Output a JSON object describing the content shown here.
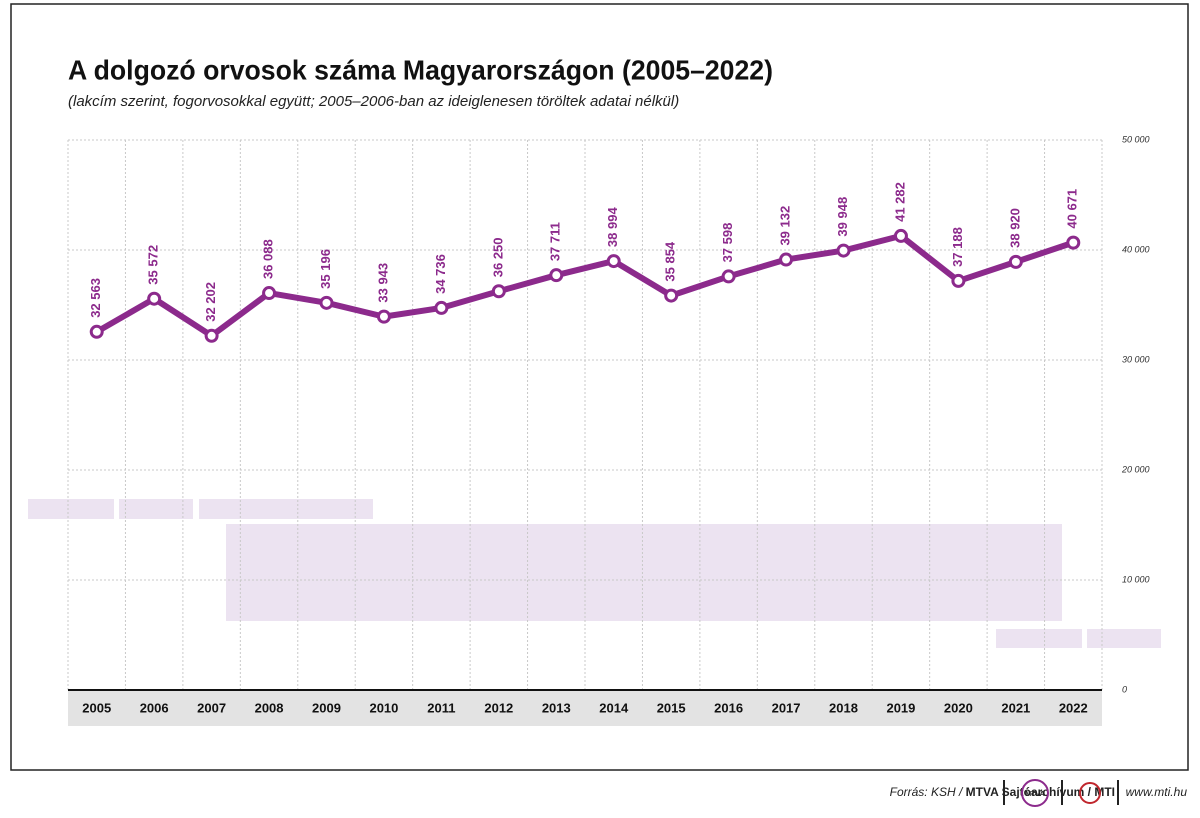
{
  "chart_data": {
    "type": "line",
    "title": "A dolgozó orvosok száma Magyarországon (2005–2022)",
    "subtitle": "(lakcím szerint, fogorvosokkal együtt; 2005–2006-ban az ideiglenesen töröltek adatai nélkül)",
    "categories": [
      "2005",
      "2006",
      "2007",
      "2008",
      "2009",
      "2010",
      "2011",
      "2012",
      "2013",
      "2014",
      "2015",
      "2016",
      "2017",
      "2018",
      "2019",
      "2020",
      "2021",
      "2022"
    ],
    "series": [
      {
        "color": "#8c2a8c",
        "values": [
          32563,
          35572,
          32202,
          36088,
          35196,
          33943,
          34736,
          36250,
          37711,
          38994,
          35854,
          37598,
          39132,
          39948,
          41282,
          37188,
          38920,
          40671
        ],
        "value_labels": [
          "32 563",
          "35 572",
          "32 202",
          "36 088",
          "35 196",
          "33 943",
          "34 736",
          "36 250",
          "37 711",
          "38 994",
          "35 854",
          "37 598",
          "39 132",
          "39 948",
          "41 282",
          "37 188",
          "38 920",
          "40 671"
        ]
      }
    ],
    "ylim": [
      0,
      50000
    ],
    "yticks": [
      0,
      {
        "value": 10000,
        "label": "10 000"
      },
      {
        "value": 20000,
        "label": "20 000"
      },
      {
        "value": 30000,
        "label": "30 000"
      },
      {
        "value": 40000,
        "label": "40 000"
      },
      {
        "value": 50000,
        "label": "50 000"
      }
    ],
    "grid": true
  },
  "footer": {
    "source_prefix": "Forrás: KSH /",
    "source_bold": "MTVA Sajtóarchívum / MTI",
    "logo": "MTVA",
    "url": "www.mti.hu"
  }
}
